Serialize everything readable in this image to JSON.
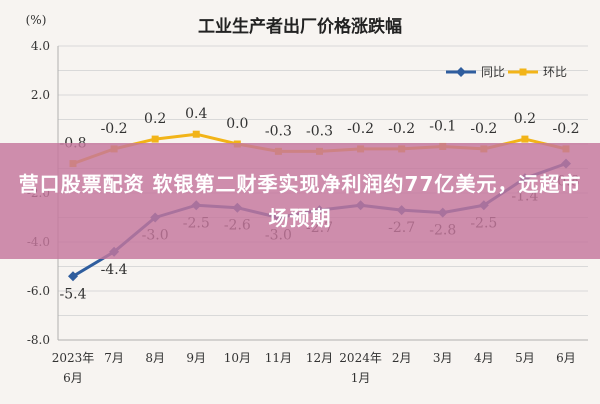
{
  "banner": {
    "text": "营口股票配资 软银第二财季实现净利润约77亿美元，远超市场预期"
  },
  "chart_data": {
    "type": "line",
    "title": "工业生产者出厂价格涨跌幅",
    "ylabel": "(%)",
    "xlabel": "",
    "ylim": [
      -8.0,
      4.0
    ],
    "yticks": [
      4.0,
      2.0,
      -2.0,
      -4.0,
      -6.0,
      -8.0
    ],
    "ytick_labels": [
      "4.0",
      "2.0",
      "-2.0",
      "-4.0",
      "-6.0",
      "-8.0"
    ],
    "grid": true,
    "legend_position": "top-right",
    "categories": [
      [
        "2023年",
        "6月"
      ],
      [
        "7月"
      ],
      [
        "8月"
      ],
      [
        "9月"
      ],
      [
        "10月"
      ],
      [
        "11月"
      ],
      [
        "12月"
      ],
      [
        "2024年",
        "1月"
      ],
      [
        "2月"
      ],
      [
        "3月"
      ],
      [
        "4月"
      ],
      [
        "5月"
      ],
      [
        "6月"
      ]
    ],
    "series": [
      {
        "name": "同比",
        "color": "#2f5d9e",
        "marker": "diamond",
        "values": [
          -5.4,
          -4.4,
          -3.0,
          -2.5,
          -2.6,
          -3.0,
          -2.7,
          -2.5,
          -2.7,
          -2.8,
          -2.5,
          -1.4,
          -0.8
        ],
        "labels": [
          "-5.4",
          "-4.4",
          "-3.0",
          "-2.5",
          "-2.6",
          "-3.0",
          "-2.7",
          "",
          "-2.7",
          "-2.8",
          "-2.5",
          "-1.4",
          "-0.8"
        ],
        "label_side": "below"
      },
      {
        "name": "环比",
        "color": "#f2b418",
        "marker": "square",
        "values": [
          -0.8,
          -0.2,
          0.2,
          0.4,
          0.0,
          -0.3,
          -0.3,
          -0.2,
          -0.2,
          -0.1,
          -0.2,
          0.2,
          -0.2
        ],
        "labels": [
          "-0.8",
          "-0.2",
          "0.2",
          "0.4",
          "0.0",
          "-0.3",
          "-0.3",
          "-0.2",
          "-0.2",
          "-0.1",
          "-0.2",
          "0.2",
          "-0.2"
        ],
        "label_side": "above"
      }
    ]
  }
}
